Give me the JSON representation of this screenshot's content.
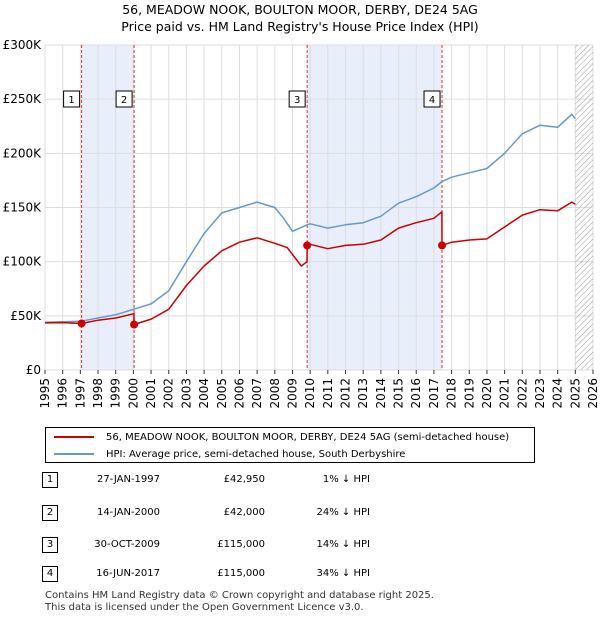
{
  "title_line1": "56, MEADOW NOOK, BOULTON MOOR, DERBY, DE24 5AG",
  "title_line2": "Price paid vs. HM Land Registry's House Price Index (HPI)",
  "legend": {
    "property": "56, MEADOW NOOK, BOULTON MOOR, DERBY, DE24 5AG (semi-detached house)",
    "hpi": "HPI: Average price, semi-detached house, South Derbyshire"
  },
  "colors": {
    "property": "#cc0000",
    "hpi": "#6699cc",
    "shade": "#e8eefa",
    "grid": "#dddddd"
  },
  "sales": [
    {
      "num": "1",
      "date": "27-JAN-1997",
      "price": "£42,950",
      "hpi": "1% ↓ HPI"
    },
    {
      "num": "2",
      "date": "14-JAN-2000",
      "price": "£42,000",
      "hpi": "24% ↓ HPI"
    },
    {
      "num": "3",
      "date": "30-OCT-2009",
      "price": "£115,000",
      "hpi": "14% ↓ HPI"
    },
    {
      "num": "4",
      "date": "16-JUN-2017",
      "price": "£115,000",
      "hpi": "34% ↓ HPI"
    }
  ],
  "footer_line1": "Contains HM Land Registry data © Crown copyright and database right 2025.",
  "footer_line2": "This data is licensed under the Open Government Licence v3.0.",
  "chart_data": {
    "type": "line",
    "xlim": [
      1995,
      2026
    ],
    "ylim": [
      0,
      300000
    ],
    "yticks": [
      0,
      50000,
      100000,
      150000,
      200000,
      250000,
      300000
    ],
    "ytick_labels": [
      "£0",
      "£50K",
      "£100K",
      "£150K",
      "£200K",
      "£250K",
      "£300K"
    ],
    "xticks": [
      1995,
      1996,
      1997,
      1998,
      1999,
      2000,
      2001,
      2002,
      2003,
      2004,
      2005,
      2006,
      2007,
      2008,
      2009,
      2010,
      2011,
      2012,
      2013,
      2014,
      2015,
      2016,
      2017,
      2018,
      2019,
      2020,
      2021,
      2022,
      2023,
      2024,
      2025,
      2026
    ],
    "shaded_ranges": [
      [
        1997.07,
        2000.04
      ],
      [
        2009.83,
        2017.46
      ]
    ],
    "hatch_from": 2025.0,
    "markers": [
      {
        "label": "1",
        "x": 1997.07,
        "y": 42950
      },
      {
        "label": "2",
        "x": 2000.04,
        "y": 42000
      },
      {
        "label": "3",
        "x": 2009.83,
        "y": 115000
      },
      {
        "label": "4",
        "x": 2017.46,
        "y": 115000
      }
    ],
    "series": [
      {
        "name": "HPI: Average price, semi-detached house, South Derbyshire",
        "x": [
          1995,
          1996,
          1997,
          1998,
          1999,
          2000,
          2001,
          2002,
          2003,
          2004,
          2005,
          2006,
          2007,
          2008,
          2008.5,
          2009,
          2009.83,
          2010,
          2011,
          2012,
          2013,
          2014,
          2015,
          2016,
          2017,
          2017.46,
          2018,
          2019,
          2020,
          2021,
          2022,
          2023,
          2024,
          2024.8,
          2025
        ],
        "y": [
          44000,
          44500,
          45000,
          48000,
          51000,
          56000,
          61000,
          73000,
          100000,
          126000,
          145000,
          150000,
          155000,
          150000,
          140000,
          128000,
          134000,
          135000,
          131000,
          134000,
          136000,
          142000,
          154000,
          160000,
          168000,
          174000,
          178000,
          182000,
          186000,
          200000,
          218000,
          226000,
          224000,
          236000,
          232000
        ]
      },
      {
        "name": "56, MEADOW NOOK, BOULTON MOOR, DERBY, DE24 5AG (semi-detached house)",
        "x": [
          1995,
          1996,
          1997.07,
          1998,
          1999,
          2000.03,
          2000.04,
          2001,
          2002,
          2003,
          2004,
          2005,
          2006,
          2007,
          2008,
          2008.7,
          2009.5,
          2009.82,
          2009.83,
          2010,
          2011,
          2012,
          2013,
          2014,
          2015,
          2016,
          2017,
          2017.45,
          2017.46,
          2018,
          2019,
          2020,
          2021,
          2022,
          2023,
          2024,
          2024.8,
          2025
        ],
        "y": [
          43500,
          43800,
          42950,
          46000,
          48000,
          52000,
          42000,
          47000,
          56000,
          78000,
          96000,
          110000,
          118000,
          122000,
          117000,
          113000,
          96000,
          100000,
          115000,
          116000,
          112000,
          115000,
          116000,
          120000,
          131000,
          136000,
          140000,
          146000,
          115000,
          118000,
          120000,
          121000,
          132000,
          143000,
          148000,
          147000,
          155000,
          153000
        ]
      }
    ]
  }
}
